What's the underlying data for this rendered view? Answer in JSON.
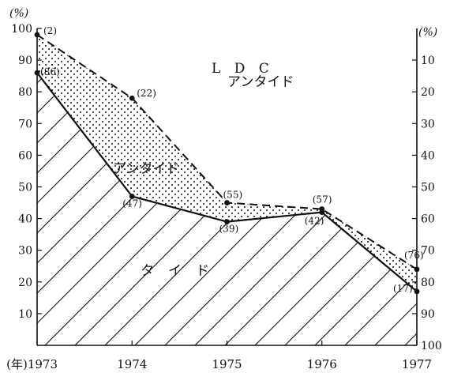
{
  "chart_data": {
    "type": "area",
    "left_unit": "(%)",
    "right_unit": "(%)",
    "x_prefix": "(年)",
    "categories": [
      "1973",
      "1974",
      "1975",
      "1976",
      "1977"
    ],
    "y_left_ticks": [
      "10",
      "20",
      "30",
      "40",
      "50",
      "60",
      "70",
      "80",
      "90",
      "100"
    ],
    "y_right_ticks": [
      "10",
      "20",
      "30",
      "40",
      "50",
      "60",
      "70",
      "80",
      "90",
      "100"
    ],
    "ylim": [
      0,
      100
    ],
    "series": [
      {
        "values": [
          86,
          47,
          39,
          42,
          17
        ],
        "labels": [
          "(86)",
          "(47)",
          "(39)",
          "(42)",
          "(17)"
        ]
      },
      {
        "values": [
          98,
          78,
          45,
          43,
          24
        ],
        "labels": [
          "(2)",
          "(22)",
          "(55)",
          "(57)",
          "(76)"
        ]
      }
    ],
    "region_labels": {
      "top_line1": "L D C",
      "top_line2": "アンタイド",
      "middle": "アンタイド",
      "bottom": "タイド"
    }
  }
}
